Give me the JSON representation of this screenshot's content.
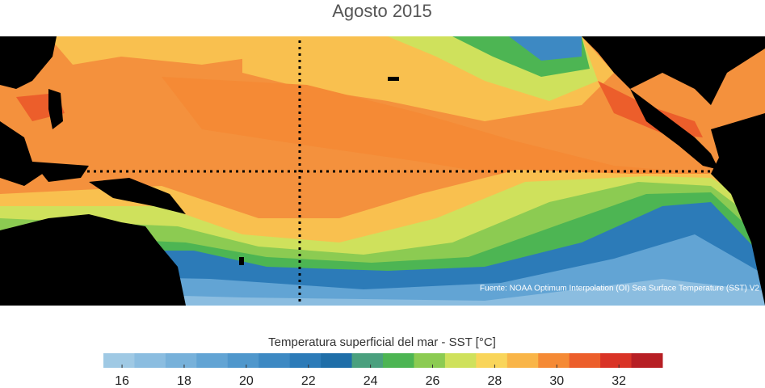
{
  "title": "Agosto 2015",
  "source": "Fuente: NOAA Optimum Interpolation (OI) Sea Surface Temperature (SST) V2",
  "colorbar": {
    "label": "Temperatura superficial del mar - SST  [°C]",
    "clim": [
      15.4,
      33.4
    ],
    "colors": [
      "#9fc9e4",
      "#8bbde0",
      "#77b1da",
      "#62a4d4",
      "#4f97cc",
      "#3d89c3",
      "#2c7bb8",
      "#1f6ea8",
      "#4aa07e",
      "#4db553",
      "#8ccb52",
      "#cfe15c",
      "#f9d55a",
      "#f9b548",
      "#f58a35",
      "#ec5e2b",
      "#d93326",
      "#b71f24"
    ],
    "ticks": [
      16,
      18,
      20,
      22,
      24,
      26,
      28,
      30,
      32
    ]
  }
}
